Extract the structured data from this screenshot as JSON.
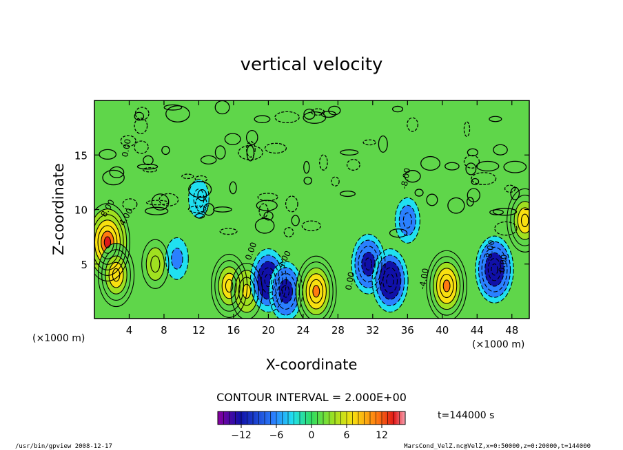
{
  "chart_data": {
    "type": "heatmap",
    "title": "vertical velocity",
    "xlabel": "X-coordinate",
    "ylabel": "Z-coordinate",
    "x_unit": "(×1000 m)",
    "y_unit": "(×1000 m)",
    "x_ticks": [
      4,
      8,
      12,
      16,
      20,
      24,
      28,
      32,
      36,
      40,
      44,
      48
    ],
    "y_ticks": [
      5,
      10,
      15
    ],
    "xlim": [
      0,
      50
    ],
    "ylim": [
      0,
      20
    ],
    "contour_interval_text": "CONTOUR INTERVAL = 2.000E+00",
    "contour_labels": [
      "8.00",
      "4.00",
      "0.00",
      "0.00",
      "-8.00",
      "-4.00",
      "0.00",
      "4.00",
      "-8.00",
      "0.00"
    ],
    "colorbar_ticks": [
      -12,
      -6,
      0,
      6,
      12
    ],
    "colorbar_range": [
      -16,
      16
    ],
    "time_label": "t=144000 s",
    "cells": [
      {
        "x": 1.5,
        "z": 7.0,
        "value": 14
      },
      {
        "x": 2.5,
        "z": 4.0,
        "value": 10
      },
      {
        "x": 7.0,
        "z": 5.0,
        "value": 6
      },
      {
        "x": 9.5,
        "z": 5.5,
        "value": -4
      },
      {
        "x": 15.5,
        "z": 3.0,
        "value": 10
      },
      {
        "x": 17.5,
        "z": 2.5,
        "value": 8
      },
      {
        "x": 20.0,
        "z": 3.5,
        "value": -10
      },
      {
        "x": 22.0,
        "z": 2.5,
        "value": -9
      },
      {
        "x": 25.5,
        "z": 2.5,
        "value": 12
      },
      {
        "x": 31.5,
        "z": 5.0,
        "value": -9
      },
      {
        "x": 34.0,
        "z": 3.5,
        "value": -10
      },
      {
        "x": 36.0,
        "z": 9.0,
        "value": -5
      },
      {
        "x": 40.5,
        "z": 3.0,
        "value": 12
      },
      {
        "x": 46.0,
        "z": 4.5,
        "value": -11
      },
      {
        "x": 49.5,
        "z": 9.0,
        "value": 10
      },
      {
        "x": 12.0,
        "z": 11.0,
        "value": -3
      }
    ]
  },
  "footer": {
    "left": "/usr/bin/gpview  2008-12-17",
    "right": "MarsCond_VelZ.nc@VelZ,x=0:50000,z=0:20000,t=144000"
  }
}
